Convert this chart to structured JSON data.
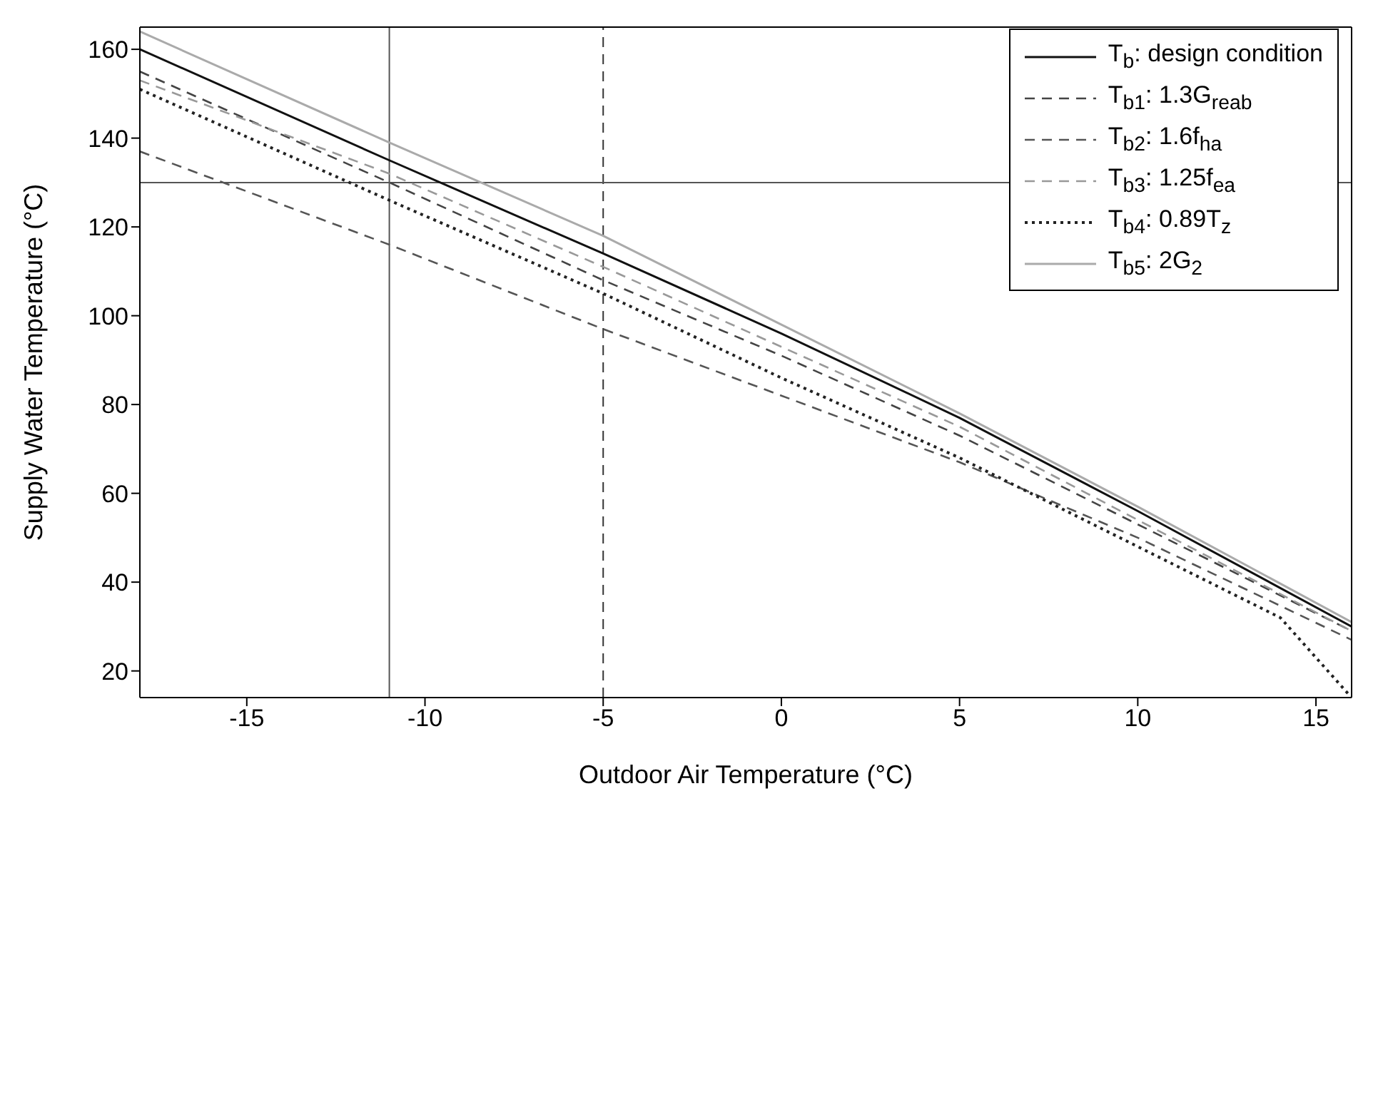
{
  "chart_data": {
    "type": "line",
    "xlabel": "Outdoor Air Temperature (°C)",
    "ylabel": "Supply Water Temperature (°C)",
    "x": [
      -18,
      -11,
      -5,
      0,
      5,
      10,
      16
    ],
    "series": [
      {
        "name": "T$_{b}$: design condition",
        "color": "#111111",
        "values": [
          160,
          135,
          114,
          96,
          77,
          56,
          30
        ],
        "line_style": "solid"
      },
      {
        "name": "T$_{b1}$: 1.3G$_{reab}$",
        "color": "#444444",
        "values": [
          155,
          130,
          108,
          91,
          73,
          53,
          29
        ],
        "line_style": "dashed"
      },
      {
        "name": "T$_{b2}$: 1.6f$_{ha}$",
        "color": "#555555",
        "values": [
          137,
          116,
          97,
          82,
          67,
          50,
          27
        ],
        "line_style": "dashed"
      },
      {
        "name": "T$_{b3}$: 1.25f$_{ea}$",
        "color": "#999999",
        "values": [
          153,
          132,
          111,
          93,
          75,
          54,
          29
        ],
        "line_style": "dashed"
      },
      {
        "name": "T$_{b4}$: 0.89T$_{z}$",
        "color": "#222222",
        "x": [
          -18,
          -11,
          -5,
          0,
          5,
          10,
          14,
          16
        ],
        "values": [
          151,
          126,
          105,
          86,
          68,
          48,
          32,
          14
        ],
        "line_style": "dotted"
      },
      {
        "name": "T$_{b5}$: 2G$_{2}$",
        "color": "#aaaaaa",
        "values": [
          164,
          139,
          118,
          98,
          78,
          57,
          31
        ],
        "line_style": "solid"
      }
    ],
    "xlim": [
      -18,
      16
    ],
    "xticks": [
      -15,
      -10,
      -5,
      0,
      5,
      10,
      15
    ],
    "ylim": [
      14,
      165
    ],
    "yticks": [
      20,
      40,
      60,
      80,
      100,
      120,
      140,
      160
    ],
    "ref_lines": [
      {
        "axis": "x",
        "value": -11,
        "color": "#555555",
        "line_style": "solid"
      },
      {
        "axis": "x",
        "value": -5,
        "color": "#333333",
        "line_style": "dashed"
      },
      {
        "axis": "y",
        "value": 130,
        "color": "#555555",
        "line_style": "solid"
      }
    ],
    "grid": false,
    "legend": "top right",
    "marker": "none"
  }
}
